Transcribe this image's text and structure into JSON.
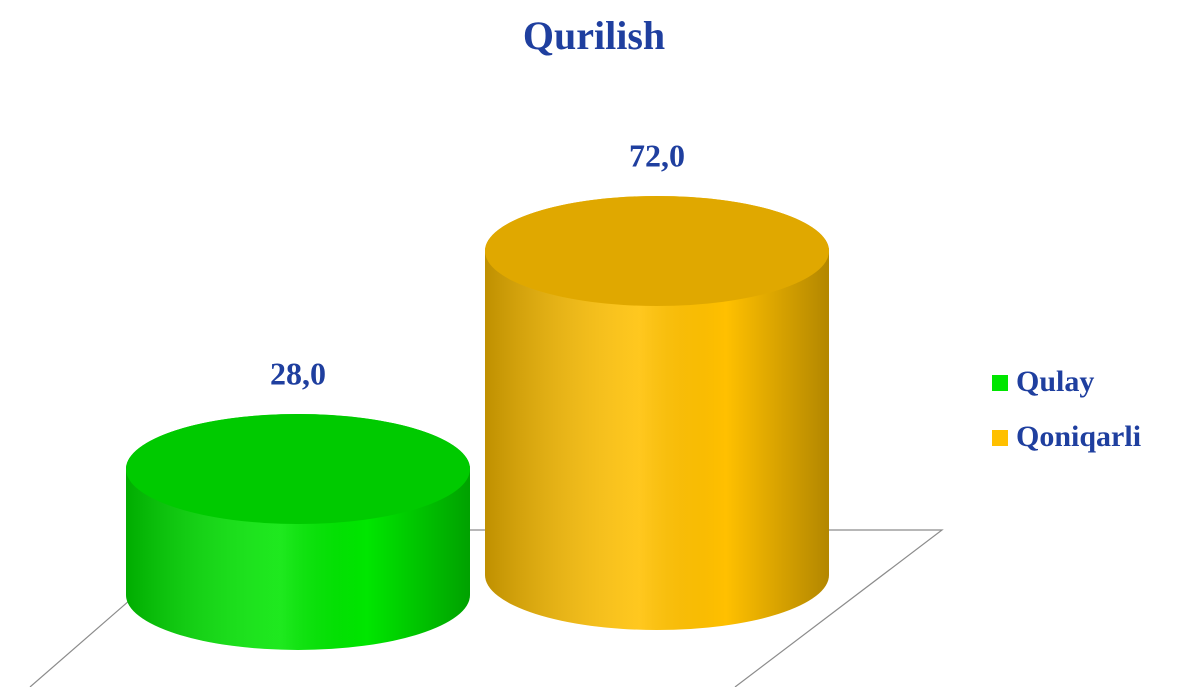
{
  "chart_data": {
    "type": "bar3d",
    "title": "Qurilish",
    "categories": [
      null
    ],
    "series": [
      {
        "name": "Qulay",
        "color": "#00e600",
        "values": [
          28
        ],
        "value_labels": [
          "28,0"
        ]
      },
      {
        "name": "Qoniqarli",
        "color": "#ffc000",
        "values": [
          72
        ],
        "value_labels": [
          "72,0"
        ]
      }
    ],
    "legend": "right"
  }
}
